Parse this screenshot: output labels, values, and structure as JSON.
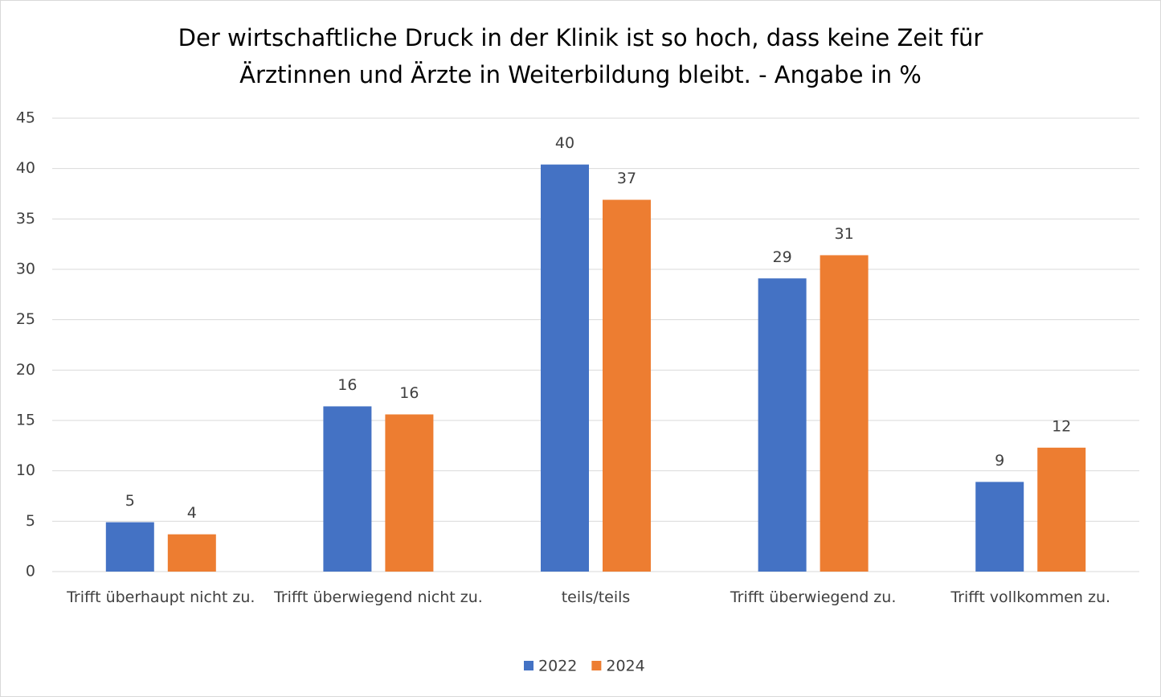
{
  "chart_data": {
    "type": "bar",
    "title": "Der wirtschaftliche Druck in der Klinik ist so hoch, dass keine Zeit für Ärztinnen und Ärzte in Weiterbildung bleibt. - Angabe in %",
    "categories": [
      "Trifft überhaupt nicht zu.",
      "Trifft überwiegend nicht zu.",
      "teils/teils",
      "Trifft überwiegend zu.",
      "Trifft vollkommen zu."
    ],
    "series": [
      {
        "name": "2022",
        "color": "#4472c4",
        "values": [
          4.9,
          16.4,
          40.4,
          29.1,
          8.9
        ],
        "value_labels": [
          "5",
          "16",
          "40",
          "29",
          "9"
        ]
      },
      {
        "name": "2024",
        "color": "#ed7d31",
        "values": [
          3.7,
          15.6,
          36.9,
          31.4,
          12.3
        ],
        "value_labels": [
          "4",
          "16",
          "37",
          "31",
          "12"
        ]
      }
    ],
    "ylim": [
      0,
      45
    ],
    "yticks": [
      0,
      5,
      10,
      15,
      20,
      25,
      30,
      35,
      40,
      45
    ],
    "grid": true,
    "legend": "bottom"
  }
}
